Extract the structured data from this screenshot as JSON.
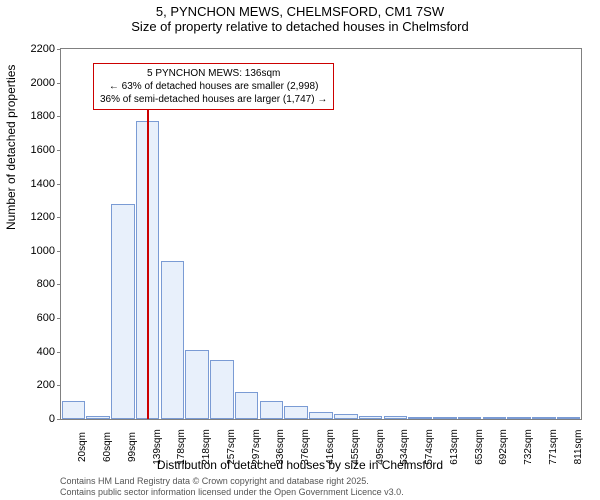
{
  "title": {
    "line1": "5, PYNCHON MEWS, CHELMSFORD, CM1 7SW",
    "line2": "Size of property relative to detached houses in Chelmsford"
  },
  "chart": {
    "type": "bar",
    "ylabel": "Number of detached properties",
    "xlabel": "Distribution of detached houses by size in Chelmsford",
    "ylim": [
      0,
      2200
    ],
    "ytick_step": 200,
    "xticks": [
      "20sqm",
      "60sqm",
      "99sqm",
      "139sqm",
      "178sqm",
      "218sqm",
      "257sqm",
      "297sqm",
      "336sqm",
      "376sqm",
      "416sqm",
      "455sqm",
      "495sqm",
      "534sqm",
      "574sqm",
      "613sqm",
      "653sqm",
      "692sqm",
      "732sqm",
      "771sqm",
      "811sqm"
    ],
    "bars": [
      110,
      20,
      1280,
      1770,
      940,
      410,
      350,
      160,
      110,
      80,
      40,
      30,
      20,
      15,
      10,
      8,
      6,
      5,
      4,
      3,
      2
    ],
    "bar_color": "#e8f0fb",
    "bar_border_color": "#7a9bd4",
    "background_color": "#ffffff",
    "axis_color": "#808080",
    "marker": {
      "value_index": 3.0,
      "color": "#cc0000",
      "height_value": 2000
    },
    "annotation": {
      "line1": "5 PYNCHON MEWS: 136sqm",
      "line2": "← 63% of detached houses are smaller (2,998)",
      "line3": "36% of semi-detached houses are larger (1,747) →",
      "border_color": "#cc0000"
    }
  },
  "footer": {
    "line1": "Contains HM Land Registry data © Crown copyright and database right 2025.",
    "line2": "Contains public sector information licensed under the Open Government Licence v3.0."
  }
}
